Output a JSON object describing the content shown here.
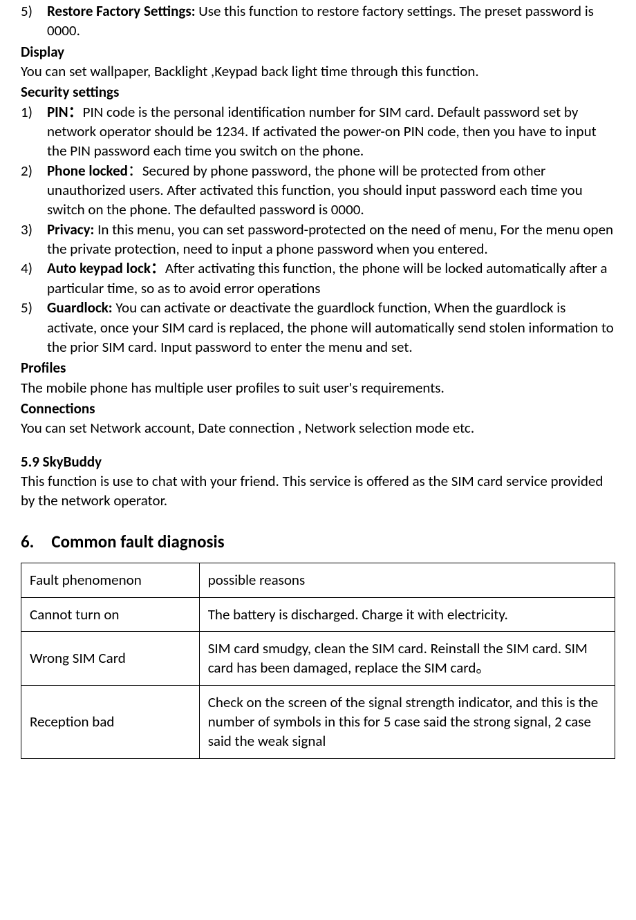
{
  "restore": {
    "marker": "5)",
    "label": "Restore Factory Settings:",
    "text": " Use this function to restore factory settings. The preset password is 0000."
  },
  "display": {
    "heading": "Display",
    "text": "You can set wallpaper, Backlight ,Keypad back light time through this function."
  },
  "security": {
    "heading": "Security settings",
    "items": [
      {
        "marker": "1)",
        "label": "PIN：",
        "text": "PIN code is the personal identification number for SIM card. Default password set by network operator should be 1234. If activated the power-on PIN code, then you have to input the PIN password each time you switch on the phone."
      },
      {
        "marker": "2)",
        "label": "Phone locked",
        "text": "：Secured by phone password, the phone will be protected from other unauthorized users. After activated this function, you should input password each time you switch on the phone. The defaulted password is 0000."
      },
      {
        "marker": "3)",
        "label": "Privacy:",
        "text": " In this menu, you can set password-protected on the need of menu, For the menu open the private protection, need to input a phone password when you entered."
      },
      {
        "marker": "4)",
        "label": "Auto keypad lock：",
        "text": "After activating this function, the phone will be locked automatically after a particular time, so as to avoid error operations"
      },
      {
        "marker": "5)",
        "label": "Guardlock:",
        "text": " You can activate or deactivate the guardlock function, When the guardlock is activate, once your SIM card is replaced, the phone will automatically send stolen information to the prior SIM card. Input password to enter the menu and set."
      }
    ]
  },
  "profiles": {
    "heading": "Profiles",
    "text": "The mobile phone has multiple user profiles to suit user's requirements."
  },
  "connections": {
    "heading": "Connections",
    "text": "You can set Network account, Date connection , Network selection mode etc."
  },
  "skybuddy": {
    "heading": "5.9 SkyBuddy",
    "text": "This function is use to chat with your friend. This service is offered as the SIM card service provided by the network operator."
  },
  "chapter6": {
    "heading": "6. Common fault diagnosis"
  },
  "table": {
    "header": {
      "c0": "Fault phenomenon",
      "c1": "possible reasons"
    },
    "rows": [
      {
        "c0": "Cannot turn on",
        "c1": "The battery is discharged. Charge it with electricity."
      },
      {
        "c0": "Wrong SIM Card",
        "c1": "SIM card smudgy, clean the SIM card. Reinstall the SIM card. SIM card has been damaged, replace the SIM card。"
      },
      {
        "c0": "Reception bad",
        "c1": "Check on the screen of the signal strength indicator, and this is the number of symbols in this for 5 case said the strong signal, 2 case said the weak signal"
      }
    ]
  }
}
